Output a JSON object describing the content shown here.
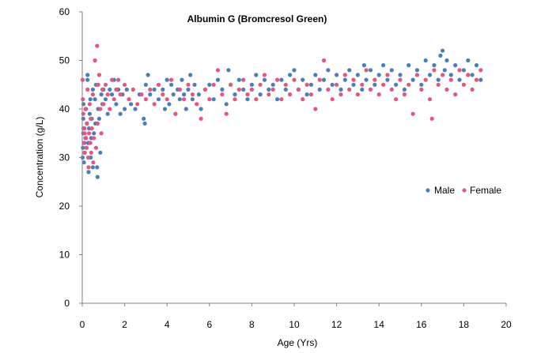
{
  "chart_data": {
    "type": "scatter",
    "title": "Albumin G (Bromcresol Green)",
    "xlabel": "Age (Yrs)",
    "ylabel": "Concentration (g/L)",
    "xlim": [
      0,
      20
    ],
    "ylim": [
      0,
      60
    ],
    "x_ticks": [
      0,
      2,
      4,
      6,
      8,
      10,
      12,
      14,
      16,
      18,
      20
    ],
    "y_ticks": [
      0,
      10,
      20,
      30,
      40,
      50,
      60
    ],
    "grid": false,
    "legend_placement": "right",
    "series": [
      {
        "name": "Male",
        "color": "#4a7ebb",
        "points": [
          [
            0.02,
            30
          ],
          [
            0.03,
            32
          ],
          [
            0.05,
            35
          ],
          [
            0.05,
            38
          ],
          [
            0.06,
            41
          ],
          [
            0.08,
            29
          ],
          [
            0.1,
            33
          ],
          [
            0.1,
            36
          ],
          [
            0.12,
            31
          ],
          [
            0.15,
            34
          ],
          [
            0.18,
            40
          ],
          [
            0.2,
            32
          ],
          [
            0.22,
            37
          ],
          [
            0.25,
            46
          ],
          [
            0.25,
            47
          ],
          [
            0.28,
            33
          ],
          [
            0.3,
            27
          ],
          [
            0.32,
            36
          ],
          [
            0.35,
            39
          ],
          [
            0.38,
            42
          ],
          [
            0.4,
            30
          ],
          [
            0.42,
            34
          ],
          [
            0.45,
            38
          ],
          [
            0.5,
            44
          ],
          [
            0.5,
            28
          ],
          [
            0.55,
            35
          ],
          [
            0.6,
            42
          ],
          [
            0.62,
            37
          ],
          [
            0.65,
            45
          ],
          [
            0.7,
            28
          ],
          [
            0.72,
            26
          ],
          [
            0.75,
            40
          ],
          [
            0.8,
            38
          ],
          [
            0.85,
            31
          ],
          [
            0.9,
            43
          ],
          [
            0.95,
            41
          ],
          [
            1.0,
            44
          ],
          [
            1.1,
            42
          ],
          [
            1.2,
            39
          ],
          [
            1.3,
            44
          ],
          [
            1.4,
            43
          ],
          [
            1.5,
            46
          ],
          [
            1.6,
            41
          ],
          [
            1.7,
            44
          ],
          [
            1.8,
            39
          ],
          [
            1.9,
            43
          ],
          [
            2.0,
            40
          ],
          [
            2.1,
            44
          ],
          [
            2.3,
            41
          ],
          [
            2.5,
            40
          ],
          [
            2.7,
            43
          ],
          [
            2.9,
            38
          ],
          [
            2.95,
            37
          ],
          [
            3.0,
            45
          ],
          [
            3.1,
            47
          ],
          [
            3.2,
            43
          ],
          [
            3.4,
            44
          ],
          [
            3.6,
            42
          ],
          [
            3.8,
            44
          ],
          [
            3.9,
            40
          ],
          [
            4.0,
            46
          ],
          [
            4.1,
            41
          ],
          [
            4.2,
            45
          ],
          [
            4.3,
            43
          ],
          [
            4.4,
            39
          ],
          [
            4.5,
            44
          ],
          [
            4.6,
            42
          ],
          [
            4.7,
            46
          ],
          [
            4.8,
            43
          ],
          [
            4.9,
            40
          ],
          [
            5.0,
            44
          ],
          [
            5.1,
            47
          ],
          [
            5.2,
            42
          ],
          [
            5.3,
            45
          ],
          [
            5.5,
            43
          ],
          [
            5.6,
            40
          ],
          [
            5.8,
            44
          ],
          [
            6.0,
            45
          ],
          [
            6.2,
            42
          ],
          [
            6.4,
            46
          ],
          [
            6.6,
            44
          ],
          [
            6.8,
            41
          ],
          [
            6.9,
            48
          ],
          [
            7.0,
            45
          ],
          [
            7.2,
            43
          ],
          [
            7.4,
            46
          ],
          [
            7.6,
            44
          ],
          [
            7.8,
            42
          ],
          [
            8.0,
            45
          ],
          [
            8.2,
            47
          ],
          [
            8.4,
            43
          ],
          [
            8.6,
            46
          ],
          [
            8.8,
            44
          ],
          [
            9.0,
            45
          ],
          [
            9.2,
            42
          ],
          [
            9.4,
            46
          ],
          [
            9.6,
            44
          ],
          [
            9.8,
            47
          ],
          [
            10.0,
            48
          ],
          [
            10.2,
            44
          ],
          [
            10.4,
            46
          ],
          [
            10.6,
            43
          ],
          [
            10.8,
            45
          ],
          [
            11.0,
            47
          ],
          [
            11.2,
            44
          ],
          [
            11.4,
            46
          ],
          [
            11.6,
            48
          ],
          [
            11.8,
            45
          ],
          [
            12.0,
            47
          ],
          [
            12.2,
            44
          ],
          [
            12.4,
            46
          ],
          [
            12.6,
            48
          ],
          [
            12.8,
            45
          ],
          [
            13.0,
            47
          ],
          [
            13.2,
            44
          ],
          [
            13.3,
            49
          ],
          [
            13.4,
            46
          ],
          [
            13.6,
            48
          ],
          [
            13.8,
            45
          ],
          [
            14.0,
            47
          ],
          [
            14.2,
            49
          ],
          [
            14.4,
            46
          ],
          [
            14.6,
            48
          ],
          [
            14.8,
            45
          ],
          [
            15.0,
            47
          ],
          [
            15.2,
            44
          ],
          [
            15.4,
            49
          ],
          [
            15.6,
            46
          ],
          [
            15.8,
            48
          ],
          [
            16.0,
            45
          ],
          [
            16.2,
            50
          ],
          [
            16.4,
            47
          ],
          [
            16.6,
            49
          ],
          [
            16.8,
            46
          ],
          [
            16.9,
            51
          ],
          [
            17.0,
            52
          ],
          [
            17.1,
            48
          ],
          [
            17.2,
            50
          ],
          [
            17.4,
            47
          ],
          [
            17.6,
            49
          ],
          [
            17.8,
            46
          ],
          [
            18.0,
            48
          ],
          [
            18.2,
            50
          ],
          [
            18.4,
            47
          ],
          [
            18.6,
            49
          ],
          [
            18.8,
            46
          ]
        ]
      },
      {
        "name": "Female",
        "color": "#e75480",
        "points": [
          [
            0.02,
            46
          ],
          [
            0.03,
            42
          ],
          [
            0.05,
            39
          ],
          [
            0.06,
            36
          ],
          [
            0.08,
            33
          ],
          [
            0.1,
            31
          ],
          [
            0.12,
            35
          ],
          [
            0.15,
            40
          ],
          [
            0.18,
            34
          ],
          [
            0.2,
            32
          ],
          [
            0.22,
            37
          ],
          [
            0.25,
            44
          ],
          [
            0.28,
            30
          ],
          [
            0.3,
            28
          ],
          [
            0.32,
            35
          ],
          [
            0.35,
            41
          ],
          [
            0.38,
            33
          ],
          [
            0.4,
            38
          ],
          [
            0.42,
            31
          ],
          [
            0.45,
            36
          ],
          [
            0.5,
            43
          ],
          [
            0.52,
            29
          ],
          [
            0.55,
            34
          ],
          [
            0.6,
            50
          ],
          [
            0.65,
            32
          ],
          [
            0.7,
            53
          ],
          [
            0.72,
            37
          ],
          [
            0.75,
            45
          ],
          [
            0.8,
            47
          ],
          [
            0.85,
            40
          ],
          [
            0.9,
            35
          ],
          [
            0.95,
            44
          ],
          [
            1.0,
            41
          ],
          [
            1.1,
            45
          ],
          [
            1.2,
            43
          ],
          [
            1.3,
            40
          ],
          [
            1.4,
            46
          ],
          [
            1.5,
            42
          ],
          [
            1.6,
            44
          ],
          [
            1.7,
            46
          ],
          [
            1.8,
            43
          ],
          [
            2.0,
            45
          ],
          [
            2.2,
            42
          ],
          [
            2.4,
            44
          ],
          [
            2.6,
            41
          ],
          [
            2.8,
            43
          ],
          [
            3.0,
            42
          ],
          [
            3.2,
            44
          ],
          [
            3.4,
            41
          ],
          [
            3.6,
            45
          ],
          [
            3.8,
            43
          ],
          [
            4.0,
            42
          ],
          [
            4.2,
            46
          ],
          [
            4.4,
            39
          ],
          [
            4.6,
            44
          ],
          [
            4.8,
            42
          ],
          [
            5.0,
            45
          ],
          [
            5.2,
            43
          ],
          [
            5.4,
            41
          ],
          [
            5.6,
            38
          ],
          [
            5.8,
            44
          ],
          [
            6.0,
            42
          ],
          [
            6.2,
            45
          ],
          [
            6.4,
            48
          ],
          [
            6.6,
            43
          ],
          [
            6.8,
            39
          ],
          [
            7.0,
            45
          ],
          [
            7.2,
            42
          ],
          [
            7.4,
            44
          ],
          [
            7.6,
            46
          ],
          [
            7.8,
            43
          ],
          [
            8.0,
            44
          ],
          [
            8.2,
            42
          ],
          [
            8.4,
            45
          ],
          [
            8.6,
            47
          ],
          [
            8.8,
            43
          ],
          [
            9.0,
            44
          ],
          [
            9.2,
            46
          ],
          [
            9.4,
            42
          ],
          [
            9.6,
            45
          ],
          [
            9.8,
            43
          ],
          [
            10.0,
            46
          ],
          [
            10.2,
            44
          ],
          [
            10.4,
            42
          ],
          [
            10.6,
            45
          ],
          [
            10.8,
            43
          ],
          [
            11.0,
            40
          ],
          [
            11.2,
            46
          ],
          [
            11.4,
            50
          ],
          [
            11.6,
            44
          ],
          [
            11.8,
            42
          ],
          [
            12.0,
            45
          ],
          [
            12.2,
            43
          ],
          [
            12.4,
            47
          ],
          [
            12.6,
            44
          ],
          [
            12.8,
            46
          ],
          [
            13.0,
            43
          ],
          [
            13.2,
            45
          ],
          [
            13.4,
            48
          ],
          [
            13.6,
            44
          ],
          [
            13.8,
            46
          ],
          [
            14.0,
            43
          ],
          [
            14.2,
            45
          ],
          [
            14.4,
            47
          ],
          [
            14.6,
            44
          ],
          [
            14.8,
            42
          ],
          [
            15.0,
            46
          ],
          [
            15.2,
            43
          ],
          [
            15.4,
            45
          ],
          [
            15.6,
            39
          ],
          [
            15.8,
            47
          ],
          [
            16.0,
            44
          ],
          [
            16.2,
            46
          ],
          [
            16.4,
            42
          ],
          [
            16.5,
            38
          ],
          [
            16.6,
            48
          ],
          [
            16.8,
            45
          ],
          [
            17.0,
            47
          ],
          [
            17.2,
            44
          ],
          [
            17.4,
            46
          ],
          [
            17.6,
            43
          ],
          [
            17.8,
            48
          ],
          [
            18.0,
            45
          ],
          [
            18.2,
            47
          ],
          [
            18.4,
            44
          ],
          [
            18.6,
            46
          ],
          [
            18.8,
            48
          ]
        ]
      }
    ]
  }
}
